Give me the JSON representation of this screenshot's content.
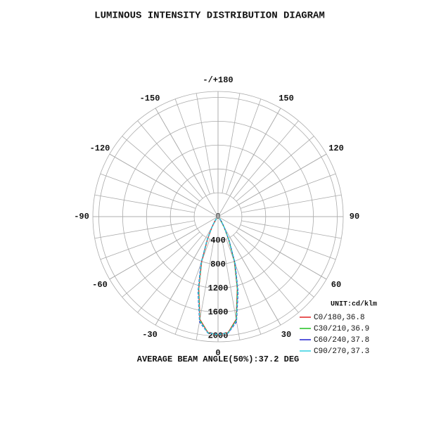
{
  "chart_data": {
    "type": "polar",
    "title": "LUMINOUS INTENSITY DISTRIBUTION DIAGRAM",
    "annotation": "AVERAGE BEAM ANGLE(50%):37.2 DEG",
    "legend_title": "UNIT:cd/klm",
    "legend": "lower right",
    "rlim": [
      0,
      2100
    ],
    "rticks": [
      0,
      400,
      800,
      1200,
      1600,
      2000
    ],
    "thetaticks": [
      0,
      30,
      60,
      90,
      120,
      150,
      {
        "value": 180,
        "label": "-/+180"
      },
      -150,
      -120,
      -90,
      -60,
      -30
    ],
    "grid": true,
    "theta": [
      -40,
      -35,
      -30,
      -25,
      -20,
      -15,
      -10,
      -5,
      0,
      5,
      10,
      15,
      20,
      25,
      30,
      35,
      40
    ],
    "series": [
      {
        "name": "C0/180,36.8",
        "color": "#e02020",
        "values": [
          40,
          90,
          200,
          420,
          800,
          1250,
          1750,
          1950,
          1980,
          1950,
          1750,
          1250,
          800,
          420,
          200,
          90,
          40
        ]
      },
      {
        "name": "C30/210,36.9",
        "color": "#20c020",
        "values": [
          42,
          92,
          205,
          425,
          810,
          1260,
          1760,
          1955,
          1980,
          1955,
          1760,
          1260,
          810,
          425,
          205,
          92,
          42
        ]
      },
      {
        "name": "C60/240,37.8",
        "color": "#2020d0",
        "values": [
          45,
          100,
          215,
          445,
          840,
          1300,
          1790,
          1960,
          1975,
          1960,
          1790,
          1300,
          840,
          445,
          215,
          100,
          45
        ]
      },
      {
        "name": "C90/270,37.3",
        "color": "#30d0e0",
        "values": [
          43,
          96,
          210,
          435,
          825,
          1280,
          1775,
          1958,
          1978,
          1958,
          1775,
          1280,
          825,
          435,
          210,
          96,
          43
        ]
      }
    ]
  }
}
